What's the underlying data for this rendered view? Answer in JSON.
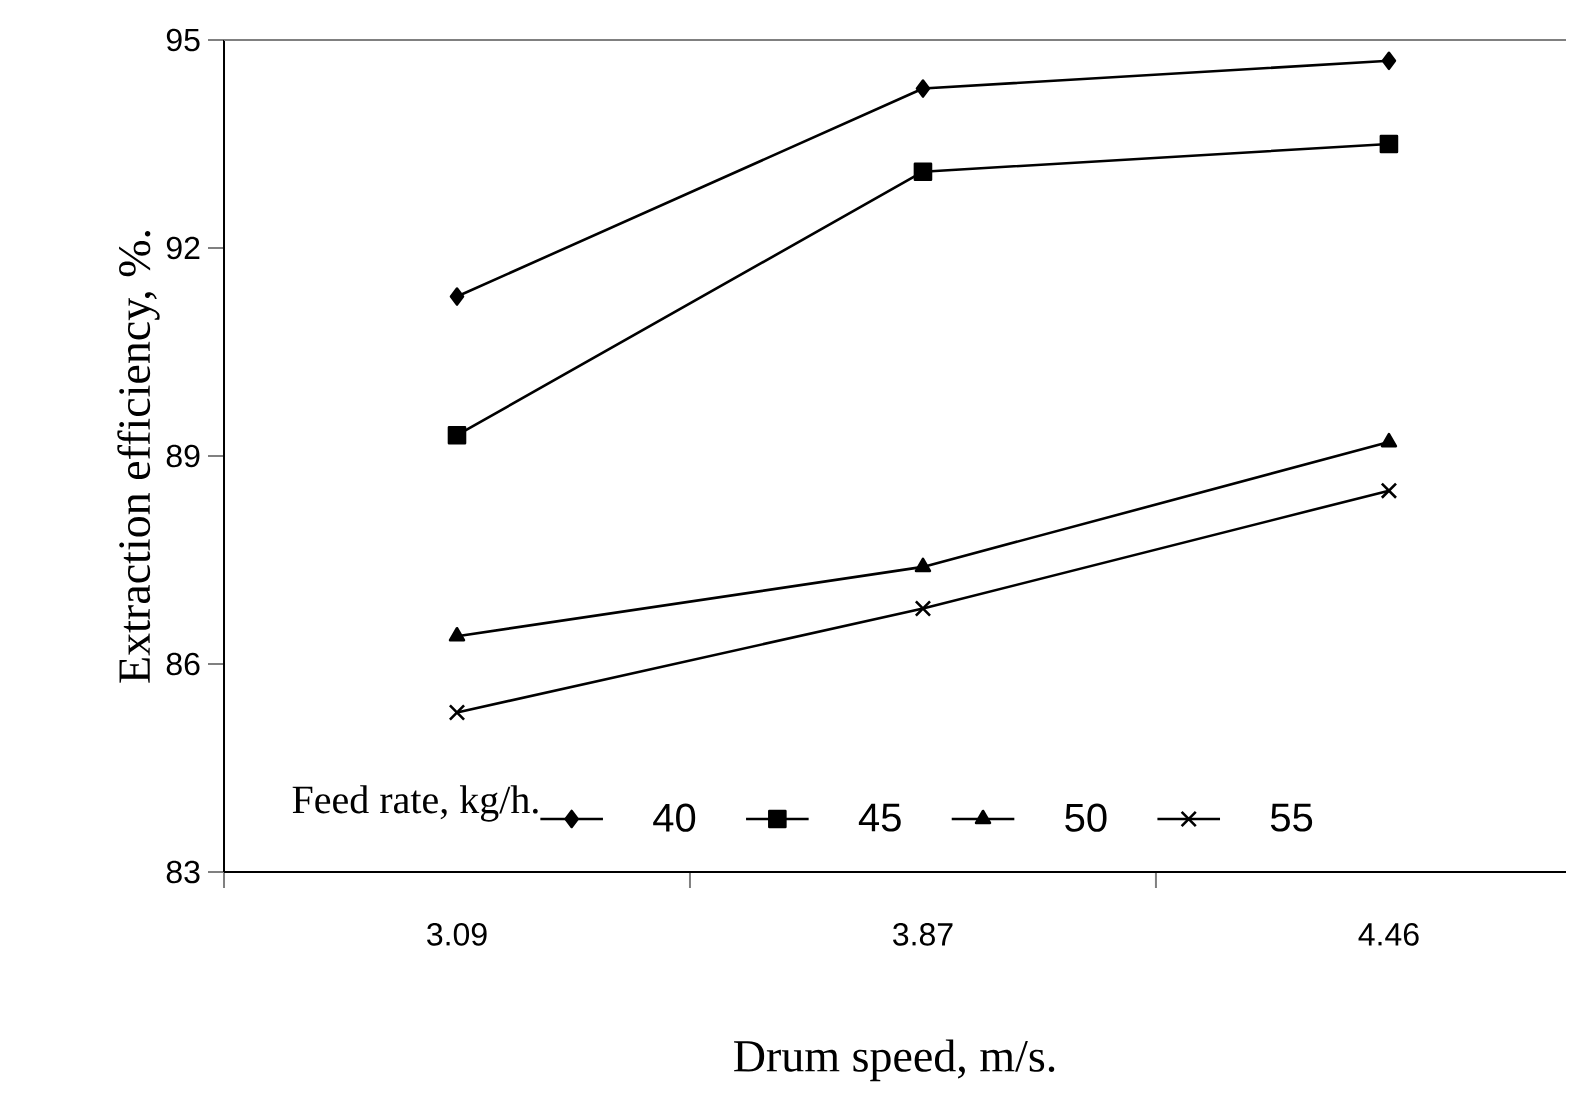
{
  "chart_data": {
    "type": "line",
    "xlabel": "Drum speed, m/s.",
    "ylabel": "Extraction efficiency, %.",
    "legend_title": "Feed rate, kg/h.",
    "categories": [
      "3.09",
      "3.87",
      "4.46"
    ],
    "ylim": [
      83,
      95
    ],
    "yticks": [
      83,
      86,
      89,
      92,
      95
    ],
    "legend": "bottom",
    "series": [
      {
        "name": "40",
        "color": "#000000",
        "marker": "diamond",
        "values": [
          91.3,
          94.3,
          94.7
        ]
      },
      {
        "name": "45",
        "color": "#000000",
        "marker": "square",
        "values": [
          89.3,
          93.1,
          93.5
        ]
      },
      {
        "name": "50",
        "color": "#000000",
        "marker": "triangle",
        "values": [
          86.4,
          87.4,
          89.2
        ]
      },
      {
        "name": "55",
        "color": "#000000",
        "marker": "cross",
        "values": [
          85.3,
          86.8,
          88.5
        ]
      }
    ]
  }
}
